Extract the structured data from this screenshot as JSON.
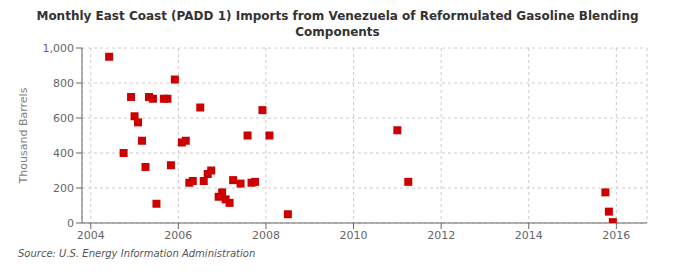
{
  "chart_data": {
    "type": "scatter",
    "title": "Monthly East Coast (PADD 1) Imports from Venezuela of Reformulated Gasoline Blending\nComponents",
    "ylabel": "Thousand Barrels",
    "annotations": [
      "Source: U.S. Energy Information Administration"
    ],
    "color": "#cc0000",
    "marker": "square",
    "grid": true,
    "xlim": [
      2003.8,
      2016.7
    ],
    "ylim": [
      0,
      1000
    ],
    "xticks": [
      2004,
      2006,
      2008,
      2010,
      2012,
      2014,
      2016
    ],
    "yticks": [
      0,
      200,
      400,
      600,
      800,
      {
        "value": 1000,
        "label": "1,000"
      }
    ],
    "x": [
      2004.42,
      2004.75,
      2004.92,
      2005.0,
      2005.08,
      2005.17,
      2005.25,
      2005.33,
      2005.42,
      2005.5,
      2005.67,
      2005.75,
      2005.83,
      2005.92,
      2006.08,
      2006.17,
      2006.25,
      2006.33,
      2006.5,
      2006.58,
      2006.67,
      2006.75,
      2006.92,
      2007.0,
      2007.08,
      2007.17,
      2007.25,
      2007.42,
      2007.58,
      2007.67,
      2007.75,
      2007.92,
      2008.08,
      2008.5,
      2011.0,
      2011.25,
      2015.75,
      2015.83,
      2015.92
    ],
    "values": [
      950,
      400,
      720,
      610,
      575,
      470,
      320,
      720,
      710,
      110,
      710,
      710,
      330,
      820,
      460,
      470,
      230,
      240,
      660,
      240,
      280,
      300,
      150,
      175,
      135,
      115,
      245,
      225,
      500,
      230,
      235,
      645,
      500,
      50,
      530,
      235,
      175,
      65,
      5
    ]
  }
}
